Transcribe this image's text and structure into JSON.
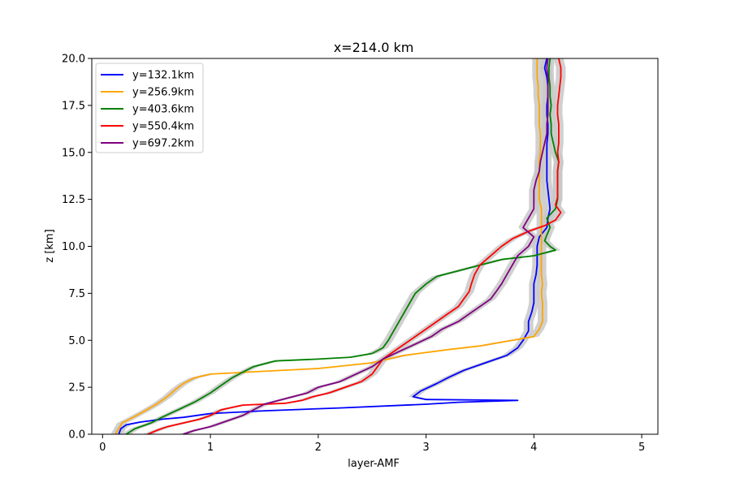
{
  "chart_data": {
    "type": "line",
    "title": "x=214.0 km",
    "xlabel": "layer-AMF",
    "ylabel": "z [km]",
    "xlim": [
      -0.1,
      5.15
    ],
    "ylim": [
      0,
      20
    ],
    "xticks": [
      0,
      1,
      2,
      3,
      4,
      5
    ],
    "xtick_labels": [
      "0",
      "1",
      "2",
      "3",
      "4",
      "5"
    ],
    "yticks": [
      0,
      2.5,
      5,
      7.5,
      10,
      12.5,
      15,
      17.5,
      20
    ],
    "ytick_labels": [
      "0.0",
      "2.5",
      "5.0",
      "7.5",
      "10.0",
      "12.5",
      "15.0",
      "17.5",
      "20.0"
    ],
    "grid": false,
    "legend_position": "upper-left",
    "uncertainty_band_color": "#c8c8c8",
    "series": [
      {
        "name": "y=132.1km",
        "color": "#0000ff",
        "points": [
          [
            0.15,
            0
          ],
          [
            0.17,
            0.3
          ],
          [
            0.22,
            0.5
          ],
          [
            0.35,
            0.65
          ],
          [
            0.55,
            0.8
          ],
          [
            0.75,
            0.9
          ],
          [
            1.0,
            1.1
          ],
          [
            1.5,
            1.25
          ],
          [
            2.2,
            1.4
          ],
          [
            3.0,
            1.6
          ],
          [
            3.3,
            1.7
          ],
          [
            3.85,
            1.8
          ],
          [
            3.0,
            1.85
          ],
          [
            2.88,
            2.0
          ],
          [
            2.95,
            2.3
          ],
          [
            3.1,
            2.7
          ],
          [
            3.2,
            3.0
          ],
          [
            3.35,
            3.4
          ],
          [
            3.55,
            3.8
          ],
          [
            3.75,
            4.2
          ],
          [
            3.85,
            4.6
          ],
          [
            3.9,
            5.0
          ],
          [
            3.95,
            5.5
          ],
          [
            3.95,
            6.0
          ],
          [
            3.98,
            6.5
          ],
          [
            4.0,
            7.0
          ],
          [
            4.0,
            7.5
          ],
          [
            4.0,
            8.0
          ],
          [
            4.02,
            8.5
          ],
          [
            4.03,
            9.0
          ],
          [
            4.03,
            9.5
          ],
          [
            4.03,
            10.0
          ],
          [
            4.05,
            10.5
          ],
          [
            4.12,
            11.0
          ],
          [
            4.13,
            11.5
          ],
          [
            4.15,
            12.0
          ],
          [
            4.14,
            12.5
          ],
          [
            4.13,
            13.0
          ],
          [
            4.12,
            13.5
          ],
          [
            4.12,
            14.0
          ],
          [
            4.12,
            14.5
          ],
          [
            4.12,
            15.0
          ],
          [
            4.12,
            15.5
          ],
          [
            4.13,
            16.0
          ],
          [
            4.13,
            16.5
          ],
          [
            4.12,
            17.0
          ],
          [
            4.12,
            17.5
          ],
          [
            4.13,
            18.0
          ],
          [
            4.13,
            18.5
          ],
          [
            4.12,
            19.0
          ],
          [
            4.1,
            19.5
          ],
          [
            4.12,
            20.0
          ]
        ]
      },
      {
        "name": "y=256.9km",
        "color": "#ffa500",
        "points": [
          [
            0.12,
            0
          ],
          [
            0.15,
            0.3
          ],
          [
            0.18,
            0.6
          ],
          [
            0.25,
            0.8
          ],
          [
            0.38,
            1.2
          ],
          [
            0.5,
            1.6
          ],
          [
            0.6,
            2.0
          ],
          [
            0.68,
            2.4
          ],
          [
            0.75,
            2.7
          ],
          [
            0.85,
            3.0
          ],
          [
            1.0,
            3.2
          ],
          [
            1.5,
            3.35
          ],
          [
            2.0,
            3.5
          ],
          [
            2.5,
            3.8
          ],
          [
            2.8,
            4.2
          ],
          [
            3.2,
            4.5
          ],
          [
            3.5,
            4.7
          ],
          [
            3.8,
            5.0
          ],
          [
            4.0,
            5.2
          ],
          [
            4.05,
            5.6
          ],
          [
            4.08,
            6.0
          ],
          [
            4.08,
            6.5
          ],
          [
            4.08,
            7.0
          ],
          [
            4.07,
            7.5
          ],
          [
            4.08,
            8.0
          ],
          [
            4.07,
            8.5
          ],
          [
            4.07,
            9.0
          ],
          [
            4.07,
            9.5
          ],
          [
            4.07,
            10.0
          ],
          [
            4.07,
            10.5
          ],
          [
            4.07,
            11.0
          ],
          [
            4.07,
            11.5
          ],
          [
            4.07,
            12.0
          ],
          [
            4.05,
            12.5
          ],
          [
            4.05,
            13.0
          ],
          [
            4.05,
            13.5
          ],
          [
            4.05,
            14.0
          ],
          [
            4.05,
            14.5
          ],
          [
            4.06,
            15.0
          ],
          [
            4.06,
            15.5
          ],
          [
            4.06,
            16.0
          ],
          [
            4.05,
            16.5
          ],
          [
            4.05,
            17.0
          ],
          [
            4.05,
            17.5
          ],
          [
            4.04,
            18.0
          ],
          [
            4.04,
            18.5
          ],
          [
            4.03,
            19.0
          ],
          [
            4.03,
            19.5
          ],
          [
            4.03,
            20.0
          ]
        ]
      },
      {
        "name": "y=403.6km",
        "color": "#008000",
        "points": [
          [
            0.22,
            0
          ],
          [
            0.3,
            0.3
          ],
          [
            0.45,
            0.6
          ],
          [
            0.55,
            0.9
          ],
          [
            0.7,
            1.3
          ],
          [
            0.85,
            1.7
          ],
          [
            1.0,
            2.2
          ],
          [
            1.1,
            2.6
          ],
          [
            1.2,
            3.0
          ],
          [
            1.3,
            3.3
          ],
          [
            1.4,
            3.6
          ],
          [
            1.6,
            3.9
          ],
          [
            2.0,
            4.0
          ],
          [
            2.3,
            4.1
          ],
          [
            2.5,
            4.3
          ],
          [
            2.6,
            4.6
          ],
          [
            2.65,
            5.0
          ],
          [
            2.7,
            5.5
          ],
          [
            2.75,
            6.0
          ],
          [
            2.8,
            6.5
          ],
          [
            2.85,
            7.0
          ],
          [
            2.9,
            7.5
          ],
          [
            3.0,
            8.0
          ],
          [
            3.1,
            8.4
          ],
          [
            3.3,
            8.7
          ],
          [
            3.5,
            9.0
          ],
          [
            3.7,
            9.3
          ],
          [
            4.0,
            9.5
          ],
          [
            4.2,
            9.8
          ],
          [
            4.15,
            10.0
          ],
          [
            4.1,
            10.3
          ],
          [
            4.12,
            10.6
          ],
          [
            4.15,
            11.0
          ],
          [
            4.12,
            11.5
          ],
          [
            4.2,
            12.0
          ],
          [
            4.22,
            12.5
          ],
          [
            4.22,
            13.0
          ],
          [
            4.22,
            13.5
          ],
          [
            4.22,
            14.0
          ],
          [
            4.23,
            14.5
          ],
          [
            4.2,
            15.0
          ],
          [
            4.18,
            15.5
          ],
          [
            4.16,
            16.0
          ],
          [
            4.16,
            16.5
          ],
          [
            4.15,
            17.0
          ],
          [
            4.16,
            17.5
          ],
          [
            4.15,
            18.0
          ],
          [
            4.15,
            18.5
          ],
          [
            4.14,
            19.0
          ],
          [
            4.14,
            19.5
          ],
          [
            4.15,
            20.0
          ]
        ]
      },
      {
        "name": "y=550.4km",
        "color": "#ff0000",
        "points": [
          [
            0.42,
            0
          ],
          [
            0.5,
            0.2
          ],
          [
            0.6,
            0.4
          ],
          [
            0.75,
            0.6
          ],
          [
            0.9,
            0.8
          ],
          [
            1.0,
            1.0
          ],
          [
            1.1,
            1.3
          ],
          [
            1.3,
            1.55
          ],
          [
            1.7,
            1.65
          ],
          [
            1.85,
            1.8
          ],
          [
            1.95,
            2.0
          ],
          [
            2.1,
            2.2
          ],
          [
            2.25,
            2.5
          ],
          [
            2.4,
            2.8
          ],
          [
            2.5,
            3.2
          ],
          [
            2.55,
            3.6
          ],
          [
            2.6,
            4.0
          ],
          [
            2.7,
            4.4
          ],
          [
            2.8,
            4.8
          ],
          [
            2.9,
            5.2
          ],
          [
            3.0,
            5.6
          ],
          [
            3.1,
            6.0
          ],
          [
            3.2,
            6.4
          ],
          [
            3.3,
            6.8
          ],
          [
            3.35,
            7.2
          ],
          [
            3.4,
            7.6
          ],
          [
            3.42,
            8.0
          ],
          [
            3.45,
            8.5
          ],
          [
            3.5,
            9.0
          ],
          [
            3.6,
            9.5
          ],
          [
            3.7,
            10.0
          ],
          [
            3.8,
            10.4
          ],
          [
            3.95,
            10.8
          ],
          [
            4.1,
            11.1
          ],
          [
            4.2,
            11.4
          ],
          [
            4.25,
            11.8
          ],
          [
            4.2,
            12.2
          ],
          [
            4.22,
            12.6
          ],
          [
            4.22,
            13.0
          ],
          [
            4.22,
            13.5
          ],
          [
            4.22,
            14.0
          ],
          [
            4.23,
            14.5
          ],
          [
            4.22,
            15.0
          ],
          [
            4.23,
            15.5
          ],
          [
            4.23,
            16.0
          ],
          [
            4.23,
            16.5
          ],
          [
            4.22,
            17.0
          ],
          [
            4.22,
            17.5
          ],
          [
            4.23,
            18.0
          ],
          [
            4.24,
            18.5
          ],
          [
            4.25,
            19.0
          ],
          [
            4.25,
            19.5
          ],
          [
            4.23,
            20.0
          ]
        ]
      },
      {
        "name": "y=697.2km",
        "color": "#800080",
        "points": [
          [
            0.75,
            0
          ],
          [
            0.85,
            0.2
          ],
          [
            1.0,
            0.4
          ],
          [
            1.1,
            0.6
          ],
          [
            1.2,
            0.8
          ],
          [
            1.3,
            1.0
          ],
          [
            1.4,
            1.3
          ],
          [
            1.5,
            1.6
          ],
          [
            1.7,
            1.9
          ],
          [
            1.9,
            2.2
          ],
          [
            2.0,
            2.5
          ],
          [
            2.2,
            2.8
          ],
          [
            2.35,
            3.2
          ],
          [
            2.5,
            3.6
          ],
          [
            2.6,
            4.0
          ],
          [
            2.75,
            4.4
          ],
          [
            2.9,
            4.8
          ],
          [
            3.05,
            5.2
          ],
          [
            3.15,
            5.6
          ],
          [
            3.3,
            6.0
          ],
          [
            3.4,
            6.4
          ],
          [
            3.5,
            6.8
          ],
          [
            3.6,
            7.2
          ],
          [
            3.65,
            7.6
          ],
          [
            3.7,
            8.0
          ],
          [
            3.75,
            8.5
          ],
          [
            3.8,
            9.0
          ],
          [
            3.85,
            9.5
          ],
          [
            3.95,
            10.0
          ],
          [
            4.0,
            10.5
          ],
          [
            3.9,
            11.0
          ],
          [
            3.95,
            11.5
          ],
          [
            4.0,
            12.0
          ],
          [
            4.0,
            12.5
          ],
          [
            4.0,
            13.0
          ],
          [
            4.02,
            13.5
          ],
          [
            4.05,
            14.0
          ],
          [
            4.06,
            14.5
          ],
          [
            4.08,
            15.0
          ],
          [
            4.1,
            15.5
          ],
          [
            4.12,
            16.0
          ],
          [
            4.12,
            16.5
          ],
          [
            4.13,
            17.0
          ],
          [
            4.13,
            17.5
          ],
          [
            4.13,
            18.0
          ],
          [
            4.13,
            18.5
          ],
          [
            4.13,
            19.0
          ],
          [
            4.12,
            19.5
          ],
          [
            4.13,
            20.0
          ]
        ]
      }
    ]
  }
}
